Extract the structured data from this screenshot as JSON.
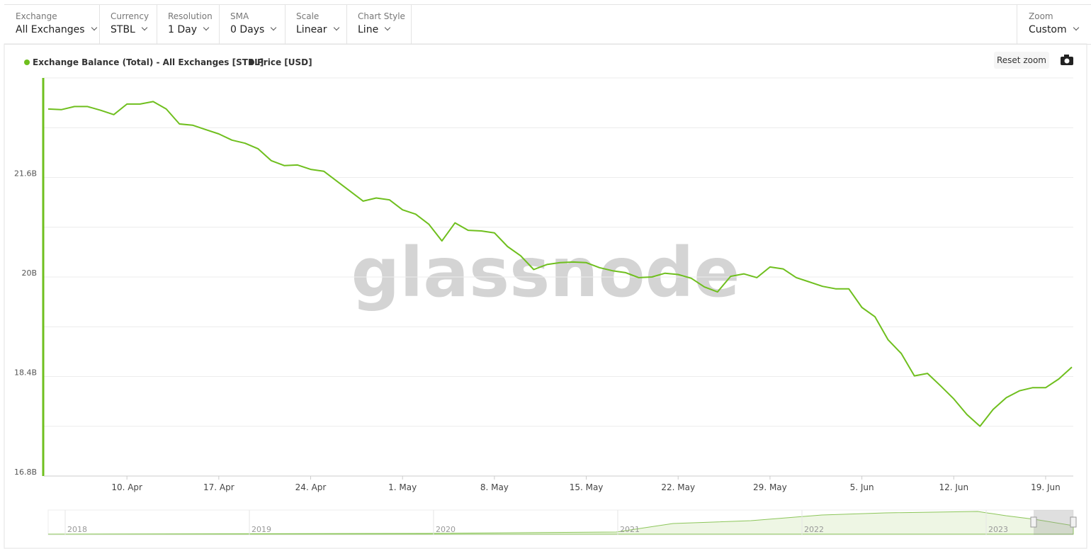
{
  "toolbar": {
    "controls": [
      {
        "label": "Exchange",
        "value": "All Exchanges"
      },
      {
        "label": "Currency",
        "value": "STBL"
      },
      {
        "label": "Resolution",
        "value": "1 Day"
      },
      {
        "label": "SMA",
        "value": "0 Days"
      },
      {
        "label": "Scale",
        "value": "Linear"
      },
      {
        "label": "Chart Style",
        "value": "Line"
      }
    ],
    "zoom": {
      "label": "Zoom",
      "value": "Custom"
    }
  },
  "reset_zoom": "Reset zoom",
  "watermark": "glassnode",
  "chart_data": {
    "type": "line",
    "x": [
      "2023-04-04",
      "2023-04-05",
      "2023-04-06",
      "2023-04-07",
      "2023-04-08",
      "2023-04-09",
      "2023-04-10",
      "2023-04-11",
      "2023-04-12",
      "2023-04-13",
      "2023-04-14",
      "2023-04-15",
      "2023-04-16",
      "2023-04-17",
      "2023-04-18",
      "2023-04-19",
      "2023-04-20",
      "2023-04-21",
      "2023-04-22",
      "2023-04-23",
      "2023-04-24",
      "2023-04-25",
      "2023-04-26",
      "2023-04-27",
      "2023-04-28",
      "2023-04-29",
      "2023-04-30",
      "2023-05-01",
      "2023-05-02",
      "2023-05-03",
      "2023-05-04",
      "2023-05-05",
      "2023-05-06",
      "2023-05-07",
      "2023-05-08",
      "2023-05-09",
      "2023-05-10",
      "2023-05-11",
      "2023-05-12",
      "2023-05-13",
      "2023-05-14",
      "2023-05-15",
      "2023-05-16",
      "2023-05-17",
      "2023-05-18",
      "2023-05-19",
      "2023-05-20",
      "2023-05-21",
      "2023-05-22",
      "2023-05-23",
      "2023-05-24",
      "2023-05-25",
      "2023-05-26",
      "2023-05-27",
      "2023-05-28",
      "2023-05-29",
      "2023-05-30",
      "2023-05-31",
      "2023-06-01",
      "2023-06-02",
      "2023-06-03",
      "2023-06-04",
      "2023-06-05",
      "2023-06-06",
      "2023-06-07",
      "2023-06-08",
      "2023-06-09",
      "2023-06-10",
      "2023-06-11",
      "2023-06-12",
      "2023-06-13",
      "2023-06-14",
      "2023-06-15",
      "2023-06-16",
      "2023-06-17",
      "2023-06-18",
      "2023-06-19",
      "2023-06-20",
      "2023-06-21"
    ],
    "series": [
      {
        "name": "Exchange Balance (Total) - All Exchanges [STBL]",
        "color": "#6fbf1e",
        "values": [
          22.7,
          22.69,
          22.74,
          22.74,
          22.68,
          22.61,
          22.78,
          22.78,
          22.82,
          22.7,
          22.46,
          22.44,
          22.37,
          22.3,
          22.2,
          22.15,
          22.06,
          21.87,
          21.79,
          21.8,
          21.73,
          21.7,
          21.54,
          21.38,
          21.22,
          21.27,
          21.24,
          21.08,
          21.01,
          20.85,
          20.58,
          20.87,
          20.75,
          20.74,
          20.71,
          20.49,
          20.34,
          20.12,
          20.2,
          20.23,
          20.24,
          20.23,
          20.15,
          20.1,
          20.07,
          19.99,
          20.0,
          20.06,
          20.04,
          19.98,
          19.84,
          19.76,
          20.01,
          20.05,
          19.99,
          20.16,
          20.13,
          19.99,
          19.92,
          19.85,
          19.81,
          19.81,
          19.51,
          19.36,
          18.99,
          18.77,
          18.41,
          18.45,
          18.25,
          18.04,
          17.79,
          17.6,
          17.87,
          18.06,
          18.17,
          18.22,
          18.22,
          18.36,
          18.55
        ]
      }
    ],
    "hidden_series": [
      {
        "name": "Price [USD]",
        "color": "#333333"
      }
    ],
    "xlim": [
      "2023-04-04",
      "2023-06-21"
    ],
    "xticks": [
      {
        "value": "2023-04-10",
        "label": "10. Apr"
      },
      {
        "value": "2023-04-17",
        "label": "17. Apr"
      },
      {
        "value": "2023-04-24",
        "label": "24. Apr"
      },
      {
        "value": "2023-05-01",
        "label": "1. May"
      },
      {
        "value": "2023-05-08",
        "label": "8. May"
      },
      {
        "value": "2023-05-15",
        "label": "15. May"
      },
      {
        "value": "2023-05-22",
        "label": "22. May"
      },
      {
        "value": "2023-05-29",
        "label": "29. May"
      },
      {
        "value": "2023-06-05",
        "label": "5. Jun"
      },
      {
        "value": "2023-06-12",
        "label": "12. Jun"
      },
      {
        "value": "2023-06-19",
        "label": "19. Jun"
      }
    ],
    "ylim": [
      16.8,
      23.2
    ],
    "yticks": [
      {
        "value": 16.8,
        "label": "16.8B"
      },
      {
        "value": 18.4,
        "label": "18.4B"
      },
      {
        "value": 20,
        "label": "20B"
      },
      {
        "value": 21.6,
        "label": "21.6B"
      }
    ],
    "minor_yticks": [
      17.6,
      19.2,
      20.8,
      22.4
    ],
    "grid": true,
    "navigator_labels": [
      "2018",
      "2019",
      "2020",
      "2021",
      "2022",
      "2023"
    ]
  }
}
